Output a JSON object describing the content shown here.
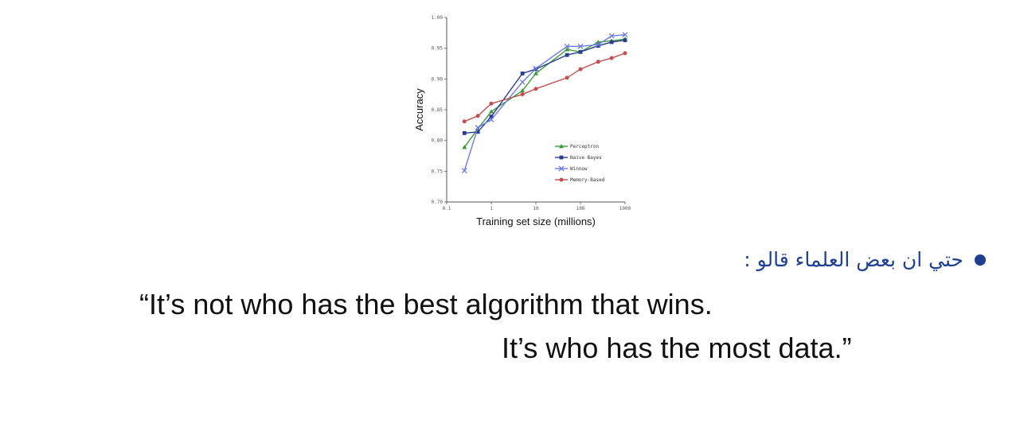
{
  "chart_data": {
    "type": "line",
    "xlabel": "Training set size (millions)",
    "ylabel": "Accuracy",
    "xscale": "log",
    "xlim": [
      0.1,
      1000
    ],
    "ylim": [
      0.7,
      1.0
    ],
    "x_ticks": [
      "0.1",
      "1",
      "10",
      "100",
      "1000"
    ],
    "y_ticks": [
      "0.70",
      "0.75",
      "0.80",
      "0.85",
      "0.90",
      "0.95",
      "1.00"
    ],
    "legend_position": "lower-right",
    "x": [
      0.25,
      0.5,
      1,
      5,
      10,
      50,
      100,
      250,
      500,
      1000
    ],
    "series": [
      {
        "name": "Perceptron",
        "color": "#3a9a3a",
        "marker": "triangle",
        "values": [
          0.789,
          0.819,
          0.847,
          0.881,
          0.909,
          0.948,
          0.944,
          0.96,
          0.962,
          0.965
        ]
      },
      {
        "name": "Naive Bayes",
        "color": "#2b3d8f",
        "marker": "square",
        "values": [
          0.812,
          0.814,
          0.839,
          0.909,
          0.916,
          0.939,
          0.944,
          0.954,
          0.96,
          0.963
        ]
      },
      {
        "name": "Winnow",
        "color": "#6a7ce0",
        "marker": "x",
        "values": [
          0.751,
          0.821,
          0.834,
          0.895,
          0.917,
          0.953,
          0.953,
          0.956,
          0.97,
          0.972
        ]
      },
      {
        "name": "Memory-Based",
        "color": "#c0504d",
        "marker": "circle",
        "values": [
          0.831,
          0.84,
          0.86,
          0.875,
          0.884,
          0.902,
          0.916,
          0.928,
          0.934,
          0.942
        ]
      }
    ]
  },
  "bullet_text": "حتي ان بعض العلماء قالو  :",
  "quote_line1": "“It’s not who has the best algorithm that wins.",
  "quote_line2": "It’s who has the most data.”"
}
